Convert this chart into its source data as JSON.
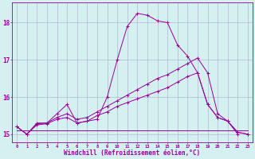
{
  "xlabel": "Windchill (Refroidissement éolien,°C)",
  "background_color": "#d4f0f0",
  "line_color": "#990099",
  "grid_color": "#aaaacc",
  "xlim": [
    -0.5,
    23.5
  ],
  "ylim": [
    14.78,
    18.55
  ],
  "yticks": [
    15,
    16,
    17,
    18
  ],
  "xticks": [
    0,
    1,
    2,
    3,
    4,
    5,
    6,
    7,
    8,
    9,
    10,
    11,
    12,
    13,
    14,
    15,
    16,
    17,
    18,
    19,
    20,
    21,
    22,
    23
  ],
  "series": [
    {
      "x": [
        0,
        1,
        2,
        3,
        4,
        5,
        6,
        7,
        8,
        9,
        10,
        11,
        12,
        13,
        14,
        15,
        16,
        17,
        18,
        19,
        20,
        21,
        22
      ],
      "y": [
        15.2,
        15.0,
        15.3,
        15.3,
        15.55,
        15.8,
        15.3,
        15.35,
        15.4,
        16.0,
        17.0,
        17.9,
        18.25,
        18.2,
        18.05,
        18.0,
        17.4,
        17.1,
        16.65,
        15.8,
        15.45,
        15.35,
        15.0
      ],
      "marker": true
    },
    {
      "x": [
        0,
        1,
        2,
        3,
        4,
        5,
        6,
        7,
        8,
        9,
        10,
        11,
        12,
        13,
        14,
        15,
        16,
        17,
        18,
        19,
        20,
        21,
        22,
        23
      ],
      "y": [
        15.2,
        15.0,
        15.25,
        15.28,
        15.4,
        15.45,
        15.3,
        15.35,
        15.5,
        15.6,
        15.75,
        15.85,
        15.95,
        16.05,
        16.15,
        16.25,
        16.4,
        16.55,
        16.65,
        15.8,
        15.45,
        15.35,
        15.05,
        15.0
      ],
      "marker": true
    },
    {
      "x": [
        0,
        1,
        2,
        3,
        4,
        5,
        6,
        7,
        8,
        9,
        10,
        11,
        12,
        13,
        14,
        15,
        16,
        17,
        18,
        19,
        20,
        21,
        22,
        23
      ],
      "y": [
        15.1,
        15.1,
        15.1,
        15.1,
        15.1,
        15.1,
        15.1,
        15.1,
        15.1,
        15.1,
        15.1,
        15.1,
        15.1,
        15.1,
        15.1,
        15.1,
        15.1,
        15.1,
        15.1,
        15.1,
        15.1,
        15.1,
        15.1,
        15.1
      ],
      "marker": false
    },
    {
      "x": [
        0,
        1,
        2,
        3,
        4,
        5,
        6,
        7,
        8,
        9,
        10,
        11,
        12,
        13,
        14,
        15,
        16,
        17,
        18,
        19,
        20,
        21,
        22,
        23
      ],
      "y": [
        15.2,
        15.0,
        15.28,
        15.3,
        15.45,
        15.55,
        15.4,
        15.45,
        15.6,
        15.75,
        15.9,
        16.05,
        16.2,
        16.35,
        16.5,
        16.6,
        16.75,
        16.9,
        17.05,
        16.65,
        15.55,
        15.35,
        15.05,
        15.0
      ],
      "marker": true
    }
  ]
}
